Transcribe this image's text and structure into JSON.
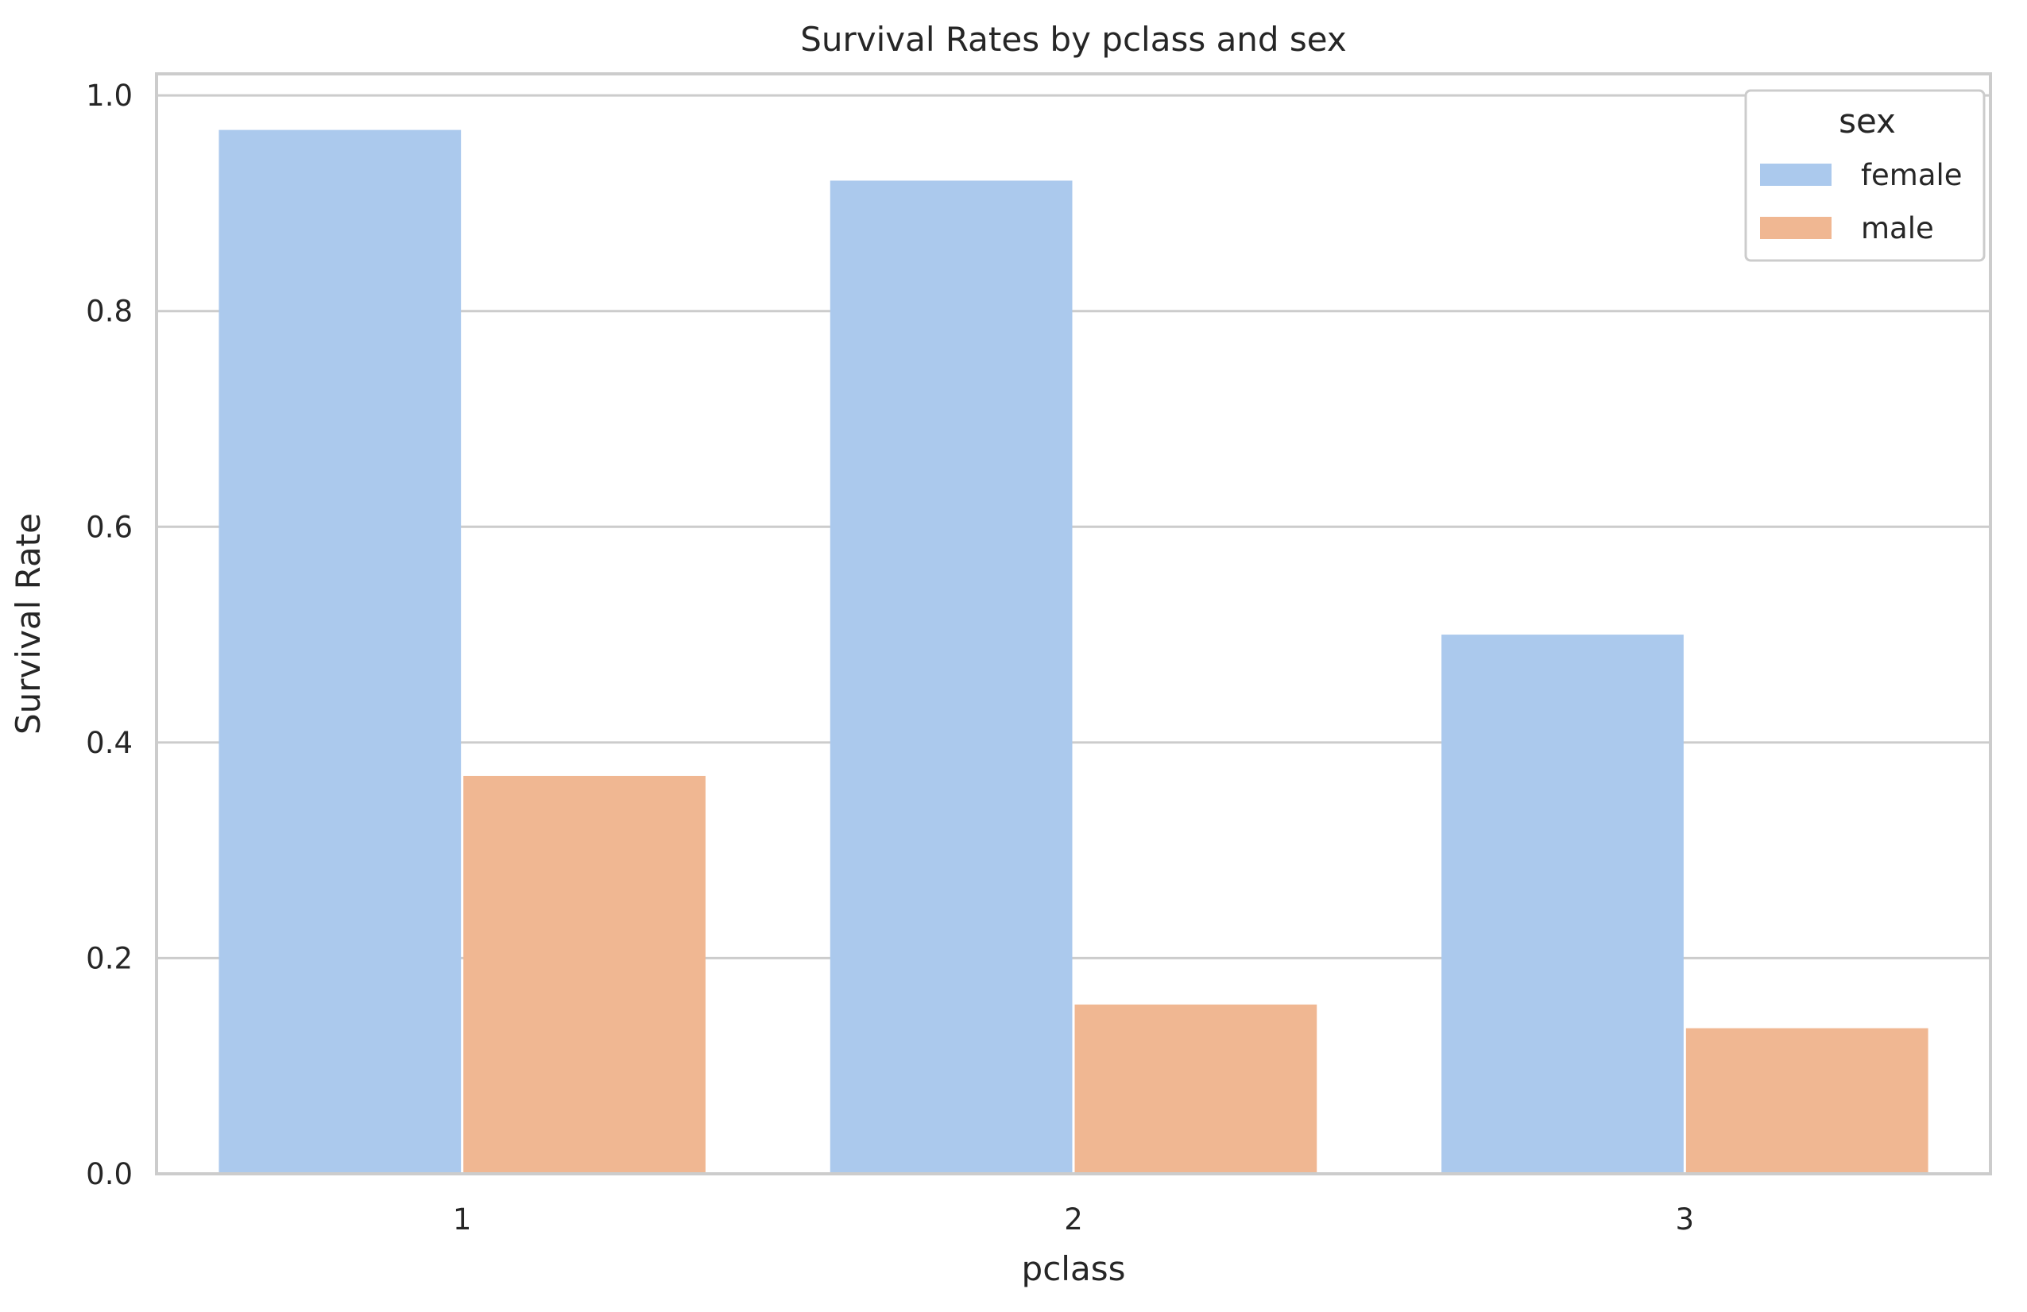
{
  "chart_data": {
    "type": "bar",
    "title": "Survival Rates by pclass and sex",
    "xlabel": "pclass",
    "ylabel": "Survival Rate",
    "categories": [
      "1",
      "2",
      "3"
    ],
    "series": [
      {
        "name": "female",
        "color": "#abc9ed",
        "values": [
          0.968,
          0.921,
          0.5
        ]
      },
      {
        "name": "male",
        "color": "#f0b792",
        "values": [
          0.369,
          0.157,
          0.135
        ]
      }
    ],
    "ylim": [
      0,
      1.02
    ],
    "yticks": [
      0.0,
      0.2,
      0.4,
      0.6,
      0.8,
      1.0
    ],
    "ytick_labels": [
      "0.0",
      "0.2",
      "0.4",
      "0.6",
      "0.8",
      "1.0"
    ],
    "grid": true,
    "legend": {
      "title": "sex",
      "position": "top-right"
    }
  },
  "colors": {
    "grid": "#cccccc",
    "spine": "#cccccc",
    "text": "#262626"
  }
}
